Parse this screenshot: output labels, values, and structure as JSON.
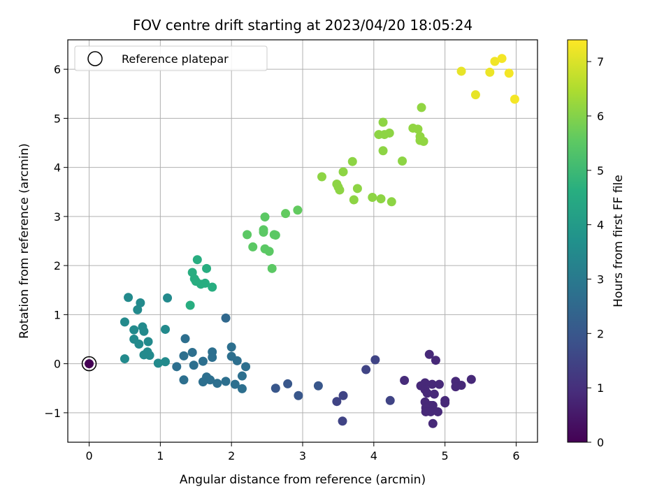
{
  "chart_data": {
    "type": "scatter",
    "title": "FOV centre drift starting at 2023/04/20 18:05:24",
    "xlabel": "Angular distance from reference (arcmin)",
    "ylabel": "Rotation from reference (arcmin)",
    "xlim": [
      -0.3,
      6.3
    ],
    "ylim": [
      -1.6,
      6.6
    ],
    "xticks": [
      0,
      1,
      2,
      3,
      4,
      5,
      6
    ],
    "yticks": [
      -1,
      0,
      1,
      2,
      3,
      4,
      5,
      6
    ],
    "xtick_labels": [
      "0",
      "1",
      "2",
      "3",
      "4",
      "5",
      "6"
    ],
    "ytick_labels": [
      "−1",
      "0",
      "1",
      "2",
      "3",
      "4",
      "5",
      "6"
    ],
    "grid": true,
    "colormap": "viridis",
    "colorbar": {
      "label": "Hours from first FF file",
      "range": [
        0,
        7.4
      ],
      "ticks": [
        0,
        1,
        2,
        3,
        4,
        5,
        6,
        7
      ],
      "tick_labels": [
        "0",
        "1",
        "2",
        "3",
        "4",
        "5",
        "6",
        "7"
      ]
    },
    "legend": {
      "position": "top-left",
      "entries": [
        {
          "label": "Reference platepar",
          "marker": "open-circle",
          "color": "#000000"
        }
      ]
    },
    "reference_point": {
      "x": 0,
      "y": 0
    },
    "points": [
      {
        "x": 0.0,
        "y": 0.0,
        "c": 0.0
      },
      {
        "x": 4.78,
        "y": 0.19,
        "c": 0.85
      },
      {
        "x": 4.87,
        "y": 0.07,
        "c": 0.85
      },
      {
        "x": 5.37,
        "y": -0.32,
        "c": 0.85
      },
      {
        "x": 5.15,
        "y": -0.36,
        "c": 0.85
      },
      {
        "x": 5.23,
        "y": -0.44,
        "c": 0.85
      },
      {
        "x": 5.15,
        "y": -0.47,
        "c": 0.85
      },
      {
        "x": 4.92,
        "y": -0.42,
        "c": 0.85
      },
      {
        "x": 4.82,
        "y": -0.42,
        "c": 0.85
      },
      {
        "x": 4.72,
        "y": -0.39,
        "c": 0.85
      },
      {
        "x": 4.66,
        "y": -0.45,
        "c": 0.85
      },
      {
        "x": 4.72,
        "y": -0.53,
        "c": 0.85
      },
      {
        "x": 4.75,
        "y": -0.6,
        "c": 0.85
      },
      {
        "x": 4.85,
        "y": -0.62,
        "c": 0.85
      },
      {
        "x": 5.0,
        "y": -0.75,
        "c": 0.85
      },
      {
        "x": 5.0,
        "y": -0.8,
        "c": 0.85
      },
      {
        "x": 4.72,
        "y": -0.78,
        "c": 0.85
      },
      {
        "x": 4.8,
        "y": -0.85,
        "c": 0.85
      },
      {
        "x": 4.83,
        "y": -0.85,
        "c": 0.85
      },
      {
        "x": 4.73,
        "y": -0.9,
        "c": 0.85
      },
      {
        "x": 4.73,
        "y": -0.98,
        "c": 0.85
      },
      {
        "x": 4.8,
        "y": -0.98,
        "c": 0.85
      },
      {
        "x": 4.9,
        "y": -0.98,
        "c": 0.85
      },
      {
        "x": 4.83,
        "y": -1.22,
        "c": 0.85
      },
      {
        "x": 4.43,
        "y": -0.34,
        "c": 0.9
      },
      {
        "x": 4.02,
        "y": 0.08,
        "c": 1.5
      },
      {
        "x": 3.89,
        "y": -0.12,
        "c": 1.5
      },
      {
        "x": 4.23,
        "y": -0.75,
        "c": 1.5
      },
      {
        "x": 3.57,
        "y": -0.65,
        "c": 1.5
      },
      {
        "x": 3.48,
        "y": -0.77,
        "c": 1.5
      },
      {
        "x": 3.56,
        "y": -1.17,
        "c": 1.5
      },
      {
        "x": 3.22,
        "y": -0.45,
        "c": 2.0
      },
      {
        "x": 2.94,
        "y": -0.65,
        "c": 2.0
      },
      {
        "x": 2.79,
        "y": -0.41,
        "c": 2.0
      },
      {
        "x": 2.62,
        "y": -0.5,
        "c": 2.0
      },
      {
        "x": 1.92,
        "y": 0.93,
        "c": 2.5
      },
      {
        "x": 2.0,
        "y": 0.34,
        "c": 2.7
      },
      {
        "x": 2.0,
        "y": 0.15,
        "c": 2.7
      },
      {
        "x": 2.08,
        "y": 0.06,
        "c": 2.7
      },
      {
        "x": 2.2,
        "y": -0.06,
        "c": 2.7
      },
      {
        "x": 2.15,
        "y": -0.25,
        "c": 2.7
      },
      {
        "x": 2.05,
        "y": -0.42,
        "c": 2.7
      },
      {
        "x": 2.15,
        "y": -0.51,
        "c": 2.7
      },
      {
        "x": 1.92,
        "y": -0.36,
        "c": 2.7
      },
      {
        "x": 1.8,
        "y": -0.4,
        "c": 2.7
      },
      {
        "x": 1.7,
        "y": -0.33,
        "c": 2.7
      },
      {
        "x": 1.65,
        "y": -0.27,
        "c": 2.7
      },
      {
        "x": 1.6,
        "y": -0.37,
        "c": 2.7
      },
      {
        "x": 1.73,
        "y": 0.24,
        "c": 2.7
      },
      {
        "x": 1.73,
        "y": 0.13,
        "c": 2.7
      },
      {
        "x": 1.6,
        "y": 0.05,
        "c": 2.7
      },
      {
        "x": 1.45,
        "y": 0.23,
        "c": 2.7
      },
      {
        "x": 1.35,
        "y": 0.51,
        "c": 2.7
      },
      {
        "x": 1.33,
        "y": 0.16,
        "c": 2.7
      },
      {
        "x": 1.47,
        "y": -0.03,
        "c": 2.7
      },
      {
        "x": 1.33,
        "y": -0.33,
        "c": 2.7
      },
      {
        "x": 1.23,
        "y": -0.06,
        "c": 2.7
      },
      {
        "x": 1.07,
        "y": 0.7,
        "c": 3.5
      },
      {
        "x": 1.07,
        "y": 0.04,
        "c": 3.5
      },
      {
        "x": 0.97,
        "y": 0.01,
        "c": 3.5
      },
      {
        "x": 0.85,
        "y": 0.17,
        "c": 3.5
      },
      {
        "x": 0.82,
        "y": 0.24,
        "c": 3.5
      },
      {
        "x": 0.77,
        "y": 0.18,
        "c": 3.5
      },
      {
        "x": 0.83,
        "y": 0.45,
        "c": 3.5
      },
      {
        "x": 0.7,
        "y": 0.4,
        "c": 3.5
      },
      {
        "x": 0.63,
        "y": 0.5,
        "c": 3.5
      },
      {
        "x": 0.63,
        "y": 0.69,
        "c": 3.5
      },
      {
        "x": 0.75,
        "y": 0.75,
        "c": 3.5
      },
      {
        "x": 0.77,
        "y": 0.66,
        "c": 3.5
      },
      {
        "x": 0.5,
        "y": 0.85,
        "c": 3.5
      },
      {
        "x": 0.5,
        "y": 0.1,
        "c": 3.5
      },
      {
        "x": 0.55,
        "y": 1.35,
        "c": 3.5
      },
      {
        "x": 0.72,
        "y": 1.24,
        "c": 3.5
      },
      {
        "x": 0.68,
        "y": 1.1,
        "c": 3.5
      },
      {
        "x": 1.1,
        "y": 1.34,
        "c": 3.5
      },
      {
        "x": 1.52,
        "y": 2.12,
        "c": 4.6
      },
      {
        "x": 1.65,
        "y": 1.94,
        "c": 4.6
      },
      {
        "x": 1.45,
        "y": 1.86,
        "c": 4.6
      },
      {
        "x": 1.48,
        "y": 1.73,
        "c": 4.6
      },
      {
        "x": 1.5,
        "y": 1.68,
        "c": 4.6
      },
      {
        "x": 1.57,
        "y": 1.62,
        "c": 4.6
      },
      {
        "x": 1.63,
        "y": 1.64,
        "c": 4.6
      },
      {
        "x": 1.73,
        "y": 1.56,
        "c": 4.6
      },
      {
        "x": 1.42,
        "y": 1.19,
        "c": 4.6
      },
      {
        "x": 2.47,
        "y": 2.99,
        "c": 5.5
      },
      {
        "x": 2.45,
        "y": 2.73,
        "c": 5.5
      },
      {
        "x": 2.45,
        "y": 2.68,
        "c": 5.5
      },
      {
        "x": 2.62,
        "y": 2.62,
        "c": 5.5
      },
      {
        "x": 2.6,
        "y": 2.63,
        "c": 5.5
      },
      {
        "x": 2.22,
        "y": 2.63,
        "c": 5.5
      },
      {
        "x": 2.3,
        "y": 2.38,
        "c": 5.5
      },
      {
        "x": 2.47,
        "y": 2.34,
        "c": 5.5
      },
      {
        "x": 2.53,
        "y": 2.29,
        "c": 5.5
      },
      {
        "x": 2.57,
        "y": 1.94,
        "c": 5.5
      },
      {
        "x": 2.76,
        "y": 3.06,
        "c": 5.6
      },
      {
        "x": 2.93,
        "y": 3.13,
        "c": 5.6
      },
      {
        "x": 3.27,
        "y": 3.81,
        "c": 6.1
      },
      {
        "x": 3.57,
        "y": 3.91,
        "c": 6.1
      },
      {
        "x": 3.48,
        "y": 3.66,
        "c": 6.1
      },
      {
        "x": 3.5,
        "y": 3.6,
        "c": 6.1
      },
      {
        "x": 3.52,
        "y": 3.54,
        "c": 6.1
      },
      {
        "x": 3.7,
        "y": 4.12,
        "c": 6.1
      },
      {
        "x": 3.77,
        "y": 3.57,
        "c": 6.1
      },
      {
        "x": 3.72,
        "y": 3.34,
        "c": 6.1
      },
      {
        "x": 3.98,
        "y": 3.39,
        "c": 6.1
      },
      {
        "x": 4.1,
        "y": 3.36,
        "c": 6.1
      },
      {
        "x": 4.25,
        "y": 3.3,
        "c": 6.1
      },
      {
        "x": 4.13,
        "y": 4.92,
        "c": 6.1
      },
      {
        "x": 4.07,
        "y": 4.67,
        "c": 6.1
      },
      {
        "x": 4.15,
        "y": 4.67,
        "c": 6.1
      },
      {
        "x": 4.22,
        "y": 4.7,
        "c": 6.1
      },
      {
        "x": 4.13,
        "y": 4.34,
        "c": 6.1
      },
      {
        "x": 4.4,
        "y": 4.13,
        "c": 6.1
      },
      {
        "x": 4.55,
        "y": 4.8,
        "c": 6.15
      },
      {
        "x": 4.62,
        "y": 4.78,
        "c": 6.15
      },
      {
        "x": 4.65,
        "y": 4.63,
        "c": 6.15
      },
      {
        "x": 4.65,
        "y": 4.55,
        "c": 6.15
      },
      {
        "x": 4.7,
        "y": 4.53,
        "c": 6.15
      },
      {
        "x": 4.67,
        "y": 5.22,
        "c": 6.15
      },
      {
        "x": 5.23,
        "y": 5.96,
        "c": 7.15
      },
      {
        "x": 5.43,
        "y": 5.48,
        "c": 7.15
      },
      {
        "x": 5.63,
        "y": 5.94,
        "c": 7.2
      },
      {
        "x": 5.7,
        "y": 6.16,
        "c": 7.25
      },
      {
        "x": 5.8,
        "y": 6.22,
        "c": 7.3
      },
      {
        "x": 5.9,
        "y": 5.92,
        "c": 7.3
      },
      {
        "x": 5.98,
        "y": 5.39,
        "c": 7.3
      }
    ]
  }
}
